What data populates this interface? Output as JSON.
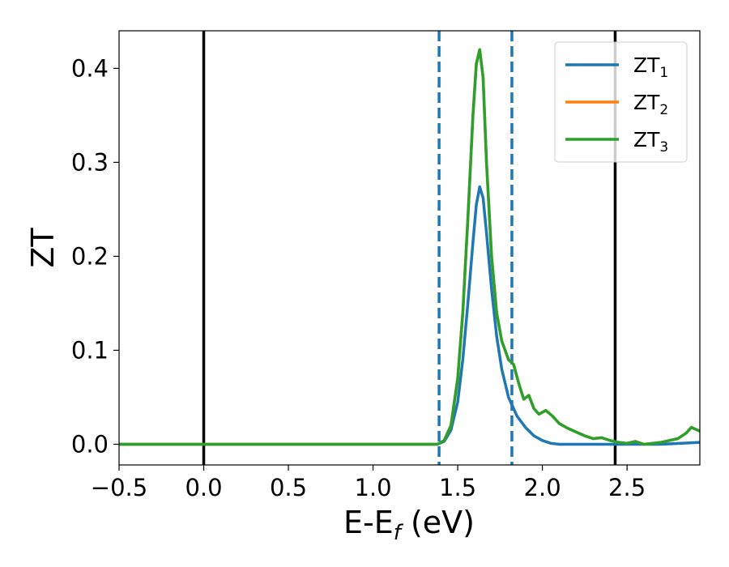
{
  "chart_data": {
    "type": "line",
    "xlabel": "E-E",
    "xlabel_sub": "f",
    "xlabel_unit": " (eV)",
    "ylabel": "ZT",
    "xlim": [
      -0.5,
      2.93
    ],
    "ylim": [
      -0.022,
      0.44
    ],
    "grid": false,
    "legend_position": "top-right",
    "x_ticks": [
      -0.5,
      0.0,
      0.5,
      1.0,
      1.5,
      2.0,
      2.5
    ],
    "x_tick_labels": [
      "−0.5",
      "0.0",
      "0.5",
      "1.0",
      "1.5",
      "2.0",
      "2.5"
    ],
    "y_ticks": [
      0.0,
      0.1,
      0.2,
      0.3,
      0.4
    ],
    "y_tick_labels": [
      "0.0",
      "0.1",
      "0.2",
      "0.3",
      "0.4"
    ],
    "vertical_lines": [
      {
        "x": 0.0,
        "style": "solid",
        "color": "#000000"
      },
      {
        "x": 2.43,
        "style": "solid",
        "color": "#000000"
      },
      {
        "x": 1.39,
        "style": "dashed",
        "color": "#1f77b4"
      },
      {
        "x": 1.82,
        "style": "dashed",
        "color": "#1f77b4"
      }
    ],
    "series": [
      {
        "name": "ZT",
        "name_sub": "1",
        "color": "#1f77b4",
        "x": [
          -0.5,
          1.0,
          1.38,
          1.42,
          1.46,
          1.5,
          1.53,
          1.56,
          1.59,
          1.61,
          1.63,
          1.65,
          1.67,
          1.7,
          1.73,
          1.76,
          1.8,
          1.85,
          1.9,
          1.95,
          2.0,
          2.05,
          2.1,
          2.3,
          2.5,
          2.7,
          2.93
        ],
        "y": [
          0.0,
          0.0,
          0.0,
          0.003,
          0.015,
          0.045,
          0.09,
          0.15,
          0.215,
          0.255,
          0.274,
          0.262,
          0.225,
          0.165,
          0.115,
          0.08,
          0.05,
          0.03,
          0.018,
          0.009,
          0.004,
          0.001,
          0.0,
          0.0,
          0.0,
          0.0,
          0.002
        ]
      },
      {
        "name": "ZT",
        "name_sub": "2",
        "color": "#ff7f0e",
        "x": [
          -0.5,
          1.0,
          1.38,
          1.42,
          1.46,
          1.5,
          1.53,
          1.56,
          1.59,
          1.61,
          1.63,
          1.65,
          1.67,
          1.7,
          1.73,
          1.76,
          1.8,
          1.83,
          1.86,
          1.89,
          1.92,
          1.95,
          1.98,
          2.02,
          2.06,
          2.1,
          2.15,
          2.2,
          2.25,
          2.3,
          2.35,
          2.4,
          2.45,
          2.5,
          2.55,
          2.6,
          2.65,
          2.7,
          2.75,
          2.8,
          2.85,
          2.88,
          2.93
        ],
        "y": [
          0.0,
          0.0,
          0.0,
          0.004,
          0.02,
          0.07,
          0.14,
          0.24,
          0.35,
          0.405,
          0.42,
          0.39,
          0.3,
          0.2,
          0.14,
          0.11,
          0.09,
          0.085,
          0.065,
          0.048,
          0.052,
          0.038,
          0.032,
          0.036,
          0.03,
          0.022,
          0.017,
          0.013,
          0.009,
          0.006,
          0.007,
          0.004,
          0.002,
          0.001,
          0.003,
          0.0,
          0.001,
          0.002,
          0.004,
          0.006,
          0.012,
          0.018,
          0.014
        ]
      },
      {
        "name": "ZT",
        "name_sub": "3",
        "color": "#2ca02c",
        "x": [
          -0.5,
          1.0,
          1.38,
          1.42,
          1.46,
          1.5,
          1.53,
          1.56,
          1.59,
          1.61,
          1.63,
          1.65,
          1.67,
          1.7,
          1.73,
          1.76,
          1.8,
          1.83,
          1.86,
          1.89,
          1.92,
          1.95,
          1.98,
          2.02,
          2.06,
          2.1,
          2.15,
          2.2,
          2.25,
          2.3,
          2.35,
          2.4,
          2.45,
          2.5,
          2.55,
          2.6,
          2.65,
          2.7,
          2.75,
          2.8,
          2.85,
          2.88,
          2.93
        ],
        "y": [
          0.0,
          0.0,
          0.0,
          0.004,
          0.02,
          0.07,
          0.14,
          0.24,
          0.35,
          0.405,
          0.42,
          0.39,
          0.3,
          0.2,
          0.14,
          0.11,
          0.09,
          0.085,
          0.065,
          0.048,
          0.052,
          0.038,
          0.032,
          0.036,
          0.03,
          0.022,
          0.017,
          0.013,
          0.009,
          0.006,
          0.007,
          0.004,
          0.002,
          0.001,
          0.003,
          0.0,
          0.001,
          0.002,
          0.004,
          0.006,
          0.012,
          0.018,
          0.014
        ]
      }
    ]
  }
}
